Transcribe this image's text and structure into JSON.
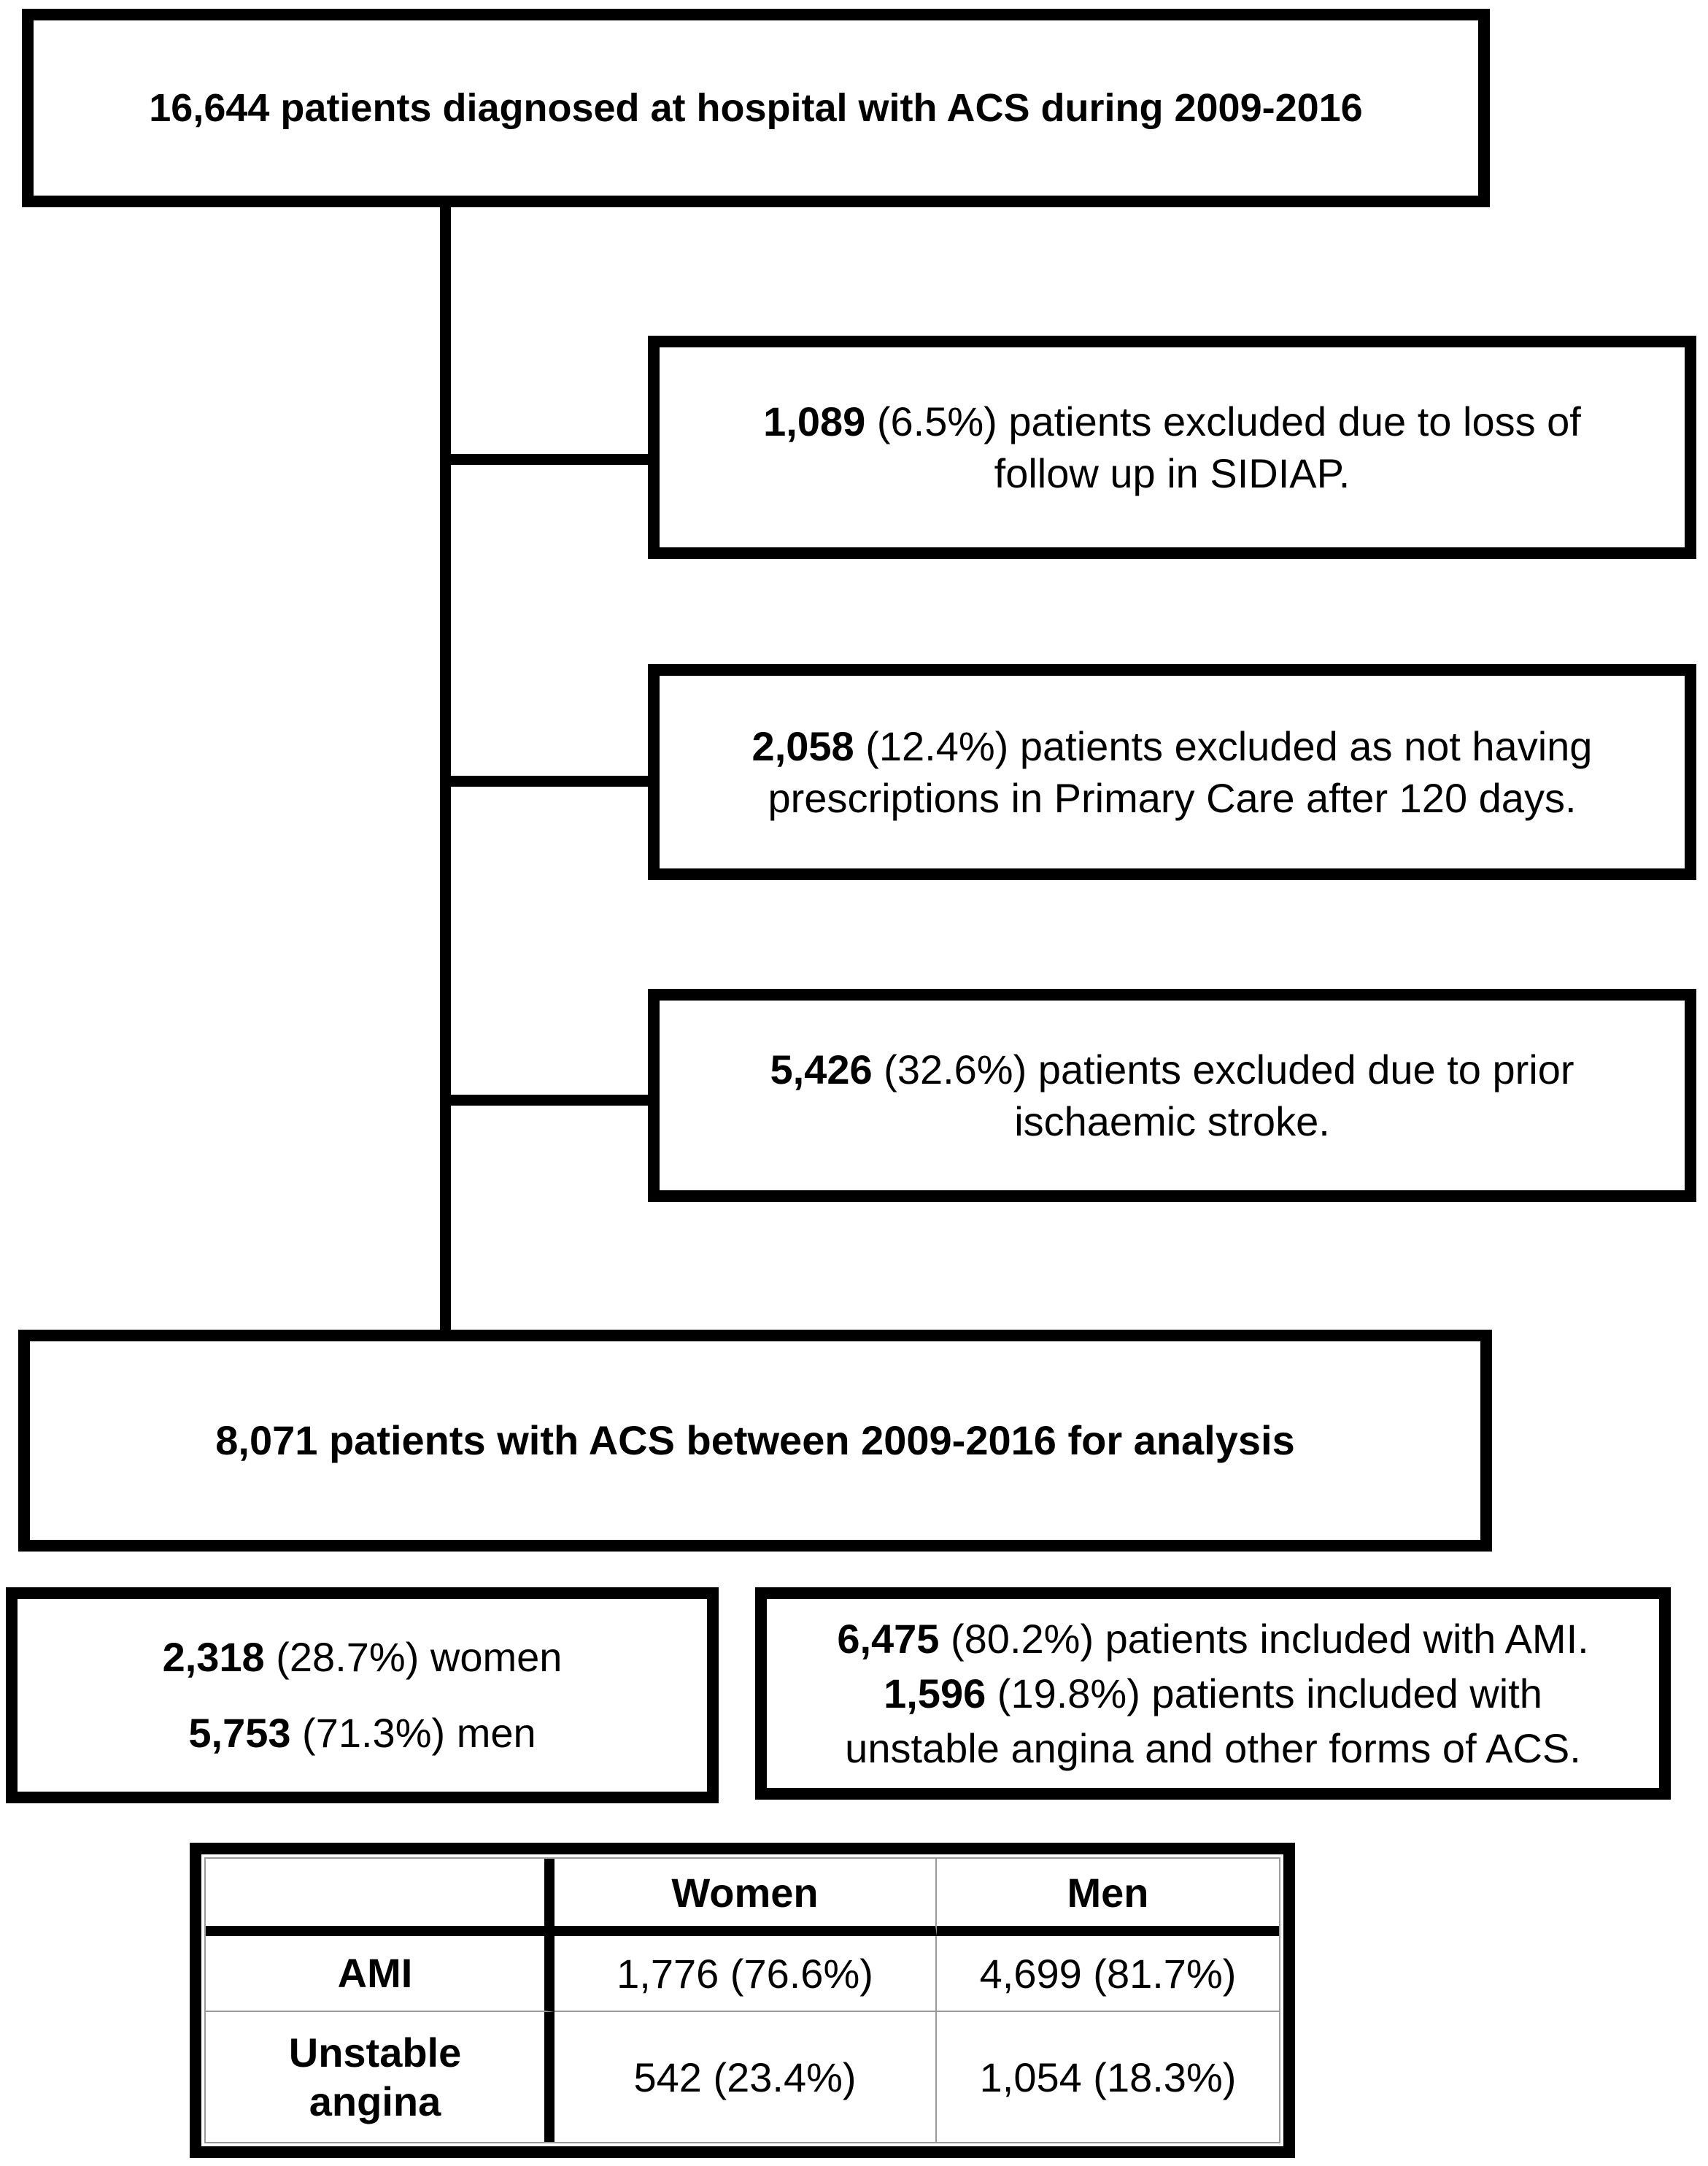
{
  "diagram": {
    "top_box": {
      "segments": [
        {
          "b": true,
          "t": "16,644 patients diagnosed at hospital with ACS during 2009-2016"
        }
      ]
    },
    "exclusion_boxes": [
      {
        "segments": [
          {
            "b": true,
            "t": "1,089"
          },
          {
            "b": false,
            "t": " (6.5%) patients excluded due to loss of\nfollow up in SIDIAP."
          }
        ]
      },
      {
        "segments": [
          {
            "b": true,
            "t": "2,058"
          },
          {
            "b": false,
            "t": " (12.4%) patients excluded as not having\nprescriptions in Primary Care after 120 days."
          }
        ]
      },
      {
        "segments": [
          {
            "b": true,
            "t": "5,426"
          },
          {
            "b": false,
            "t": " (32.6%) patients excluded due to prior\nischaemic stroke."
          }
        ]
      }
    ],
    "analysis_box": {
      "segments": [
        {
          "b": true,
          "t": "8,071 patients with ACS between 2009-2016 for analysis"
        }
      ]
    },
    "sex_box": {
      "segments": [
        {
          "b": true,
          "t": "2,318"
        },
        {
          "b": false,
          "t": " (28.7%) women\n"
        },
        {
          "b": true,
          "t": "5,753"
        },
        {
          "b": false,
          "t": " (71.3%) men"
        }
      ]
    },
    "type_box": {
      "segments": [
        {
          "b": true,
          "t": "6,475"
        },
        {
          "b": false,
          "t": " (80.2%) patients included with AMI.\n"
        },
        {
          "b": true,
          "t": "1,596"
        },
        {
          "b": false,
          "t": " (19.8%) patients included with\nunstable angina and other forms of ACS."
        }
      ]
    }
  },
  "table": {
    "columns": [
      "",
      "Women",
      "Men"
    ],
    "rows": [
      {
        "label": "AMI",
        "women": "1,776 (76.6%)",
        "men": "4,699 (81.7%)"
      },
      {
        "label": "Unstable\nangina",
        "women": "542 (23.4%)",
        "men": "1,054 (18.3%)"
      }
    ]
  },
  "colors": {
    "line": "#000000",
    "thin_line": "#9a9a9a",
    "background": "#ffffff"
  }
}
